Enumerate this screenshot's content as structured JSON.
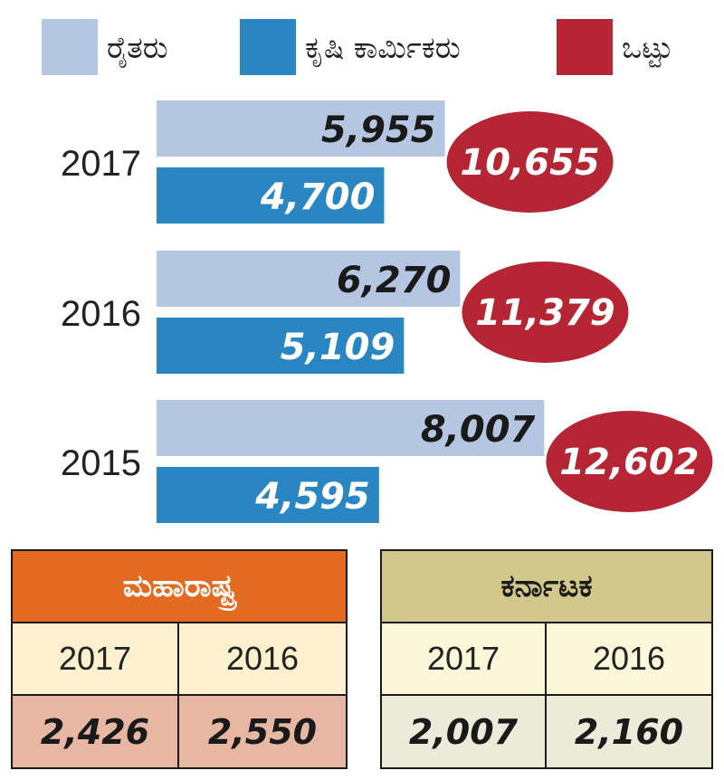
{
  "colors": {
    "farmers": "#b5c6e2",
    "labourers": "#2a86c3",
    "total": "#b52533",
    "maharashtra_header": "#e36b21",
    "karnataka_header": "#d3c88c"
  },
  "legend": [
    {
      "label": "ರೈತರು",
      "color": "#b5c6e2"
    },
    {
      "label": "ಕೃಷಿ ಕಾರ್ಮಿಕರು",
      "color": "#2a86c3"
    },
    {
      "label": "ಒಟ್ಟು",
      "color": "#b52533"
    }
  ],
  "chart_data": {
    "type": "bar",
    "orientation": "horizontal",
    "categories": [
      "2017",
      "2016",
      "2015"
    ],
    "series": [
      {
        "name": "ರೈತರು",
        "values": [
          5955,
          6270,
          8007
        ],
        "labels": [
          "5,955",
          "6,270",
          "8,007"
        ]
      },
      {
        "name": "ಕೃಷಿ ಕಾರ್ಮಿಕರು",
        "values": [
          4700,
          5109,
          4595
        ],
        "labels": [
          "4,700",
          "5,109",
          "4,595"
        ]
      }
    ],
    "totals": {
      "name": "ಒಟ್ಟು",
      "values": [
        10655,
        11379,
        12602
      ],
      "labels": [
        "10,655",
        "11,379",
        "12,602"
      ]
    },
    "grid": false,
    "legend_position": "top"
  },
  "tables": {
    "maharashtra": {
      "title": "ಮಹಾರಾಷ್ಟ್ರ",
      "years": [
        "2017",
        "2016"
      ],
      "values": [
        "2,426",
        "2,550"
      ]
    },
    "karnataka": {
      "title": "ಕರ್ನಾಟಕ",
      "years": [
        "2017",
        "2016"
      ],
      "values": [
        "2,007",
        "2,160"
      ]
    }
  }
}
